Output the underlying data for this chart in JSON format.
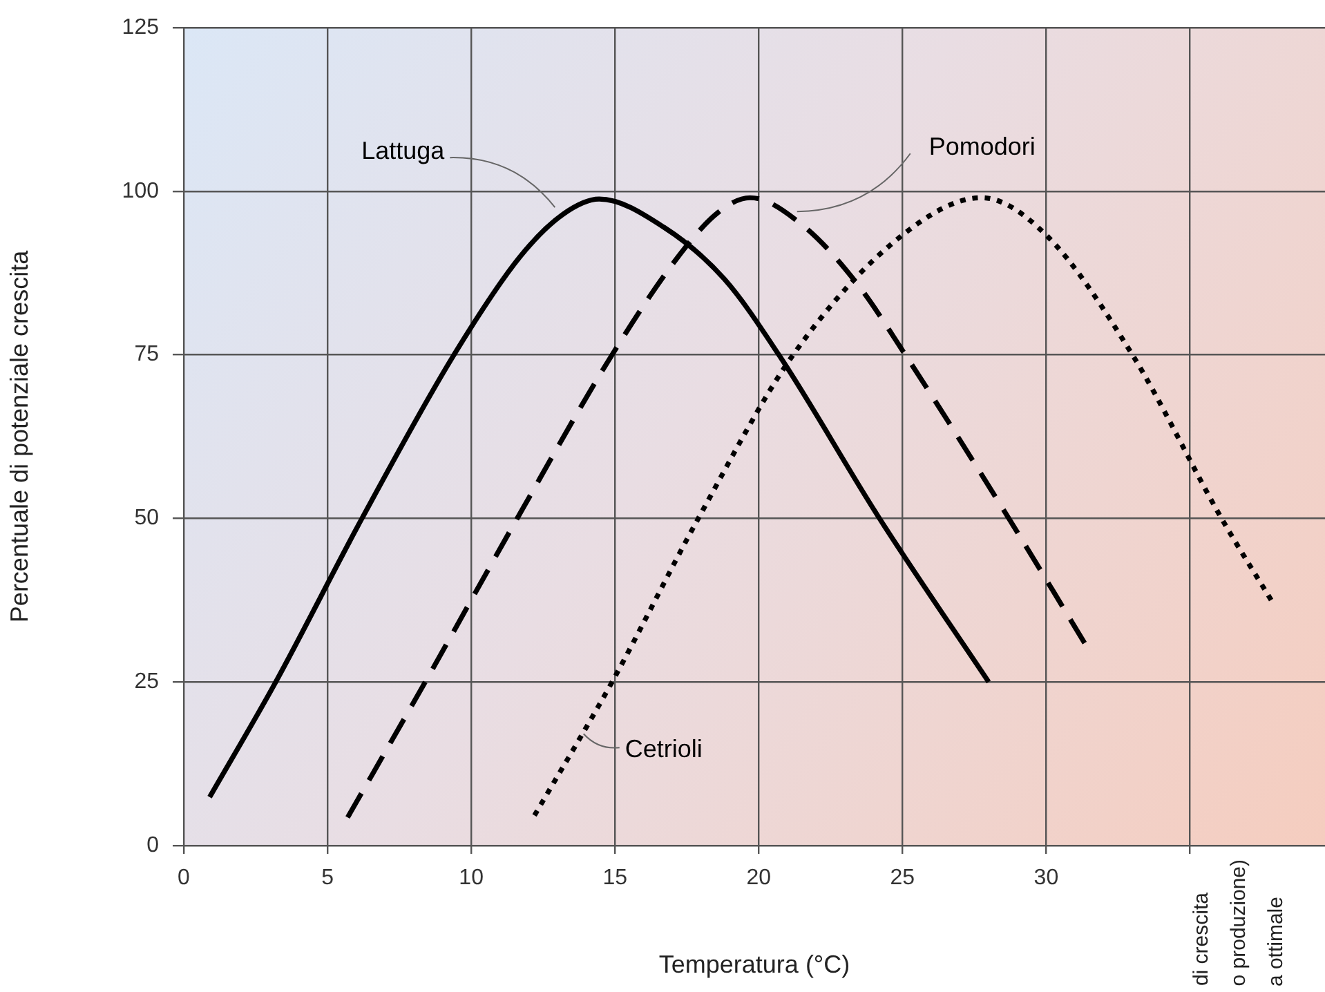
{
  "chart_data": {
    "type": "line",
    "xlabel": "Temperatura (°C)",
    "ylabel": "Percentuale di potenziale crescita",
    "xlim": [
      0,
      39.7
    ],
    "xticks": [
      0,
      5,
      10,
      15,
      20,
      25,
      30,
      {
        "value": 35,
        "label": null
      }
    ],
    "ylim": [
      0,
      125
    ],
    "yticks": [
      0,
      25,
      50,
      75,
      100,
      125
    ],
    "grid": true,
    "legend": false,
    "marker": "none",
    "series": [
      {
        "name": "Lattuga",
        "color": "#000000",
        "line_style": "solid",
        "x": [
          0.9,
          3.2,
          6.2,
          9.4,
          11.7,
          13.2,
          14.45,
          16.7,
          18.8,
          20.7,
          24.2,
          28.0
        ],
        "values": [
          7.4,
          25,
          50,
          75,
          90,
          96.5,
          98.8,
          94.5,
          86.6,
          75,
          50,
          25
        ]
      },
      {
        "name": "Pomodori",
        "color": "#000000",
        "line_style": "dashed",
        "x": [
          5.7,
          8.4,
          11.6,
          14.9,
          17.2,
          18.6,
          19.7,
          21.5,
          23.4,
          25.1,
          28.7,
          31.4
        ],
        "values": [
          4.3,
          25,
          50,
          75,
          90,
          96.8,
          99,
          94.9,
          86,
          75,
          50,
          30.5
        ]
      },
      {
        "name": "Cetrioli",
        "color": "#000000",
        "line_style": "dotted",
        "x": [
          12.2,
          14.9,
          17.9,
          21.2,
          25,
          27.75,
          30,
          33,
          36.1,
          37.9
        ],
        "values": [
          4.6,
          25,
          50,
          75,
          93.3,
          99,
          93.3,
          75,
          50,
          37
        ]
      }
    ],
    "annotations": [
      "di crescita",
      "o produzione)",
      "a ottimale"
    ]
  }
}
